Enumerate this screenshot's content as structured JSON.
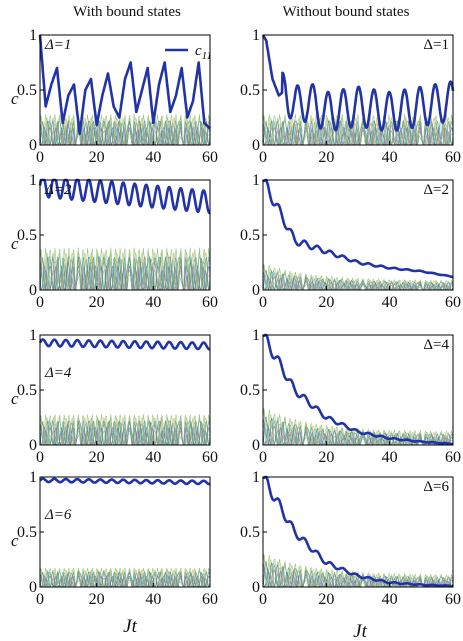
{
  "figure": {
    "left_title": "With bound states",
    "right_title": "Without bound states",
    "y_label": "c",
    "x_label": "Jt",
    "legend_label": "c",
    "legend_sub": "11"
  },
  "chart_data": [
    {
      "type": "line",
      "column": "With bound states",
      "delta_label": "Δ=1",
      "delta_italic": true,
      "main": "bound1",
      "xlim": [
        0,
        60
      ],
      "ylim": [
        0,
        1
      ],
      "xticks": [
        "0",
        "20",
        "40",
        "60"
      ],
      "yticks": [
        "0",
        "0.5",
        "1"
      ],
      "ylabel": "c",
      "xlabel": "",
      "legend": [
        {
          "name": "c11",
          "color": "#2233a8"
        }
      ],
      "series": [
        {
          "name": "c11",
          "color": "#2233a8",
          "x": [
            0,
            2,
            4,
            6,
            8,
            10,
            12,
            14,
            16,
            18,
            20,
            22,
            24,
            26,
            28,
            30,
            32,
            34,
            36,
            38,
            40,
            42,
            44,
            46,
            48,
            50,
            52,
            54,
            56,
            58,
            60
          ],
          "y": [
            1.0,
            0.35,
            0.55,
            0.7,
            0.2,
            0.45,
            0.55,
            0.1,
            0.5,
            0.6,
            0.18,
            0.45,
            0.65,
            0.35,
            0.25,
            0.6,
            0.75,
            0.3,
            0.5,
            0.7,
            0.2,
            0.55,
            0.75,
            0.3,
            0.45,
            0.7,
            0.25,
            0.4,
            0.75,
            0.2,
            0.15
          ]
        },
        {
          "name": "other modes",
          "color": "mixed",
          "y_range": [
            0,
            0.4
          ]
        }
      ]
    },
    {
      "type": "line",
      "column": "Without bound states",
      "delta_label": "Δ=1",
      "delta_italic": false,
      "main": "free",
      "xlim": [
        0,
        60
      ],
      "ylim": [
        0,
        1
      ],
      "xticks": [
        "0",
        "20",
        "40",
        "60"
      ],
      "yticks": [
        "0",
        "0.5",
        "1"
      ],
      "ylabel": "",
      "xlabel": "",
      "series": [
        {
          "name": "c11",
          "color": "#2233a8",
          "x": [
            0,
            1,
            3,
            5,
            7,
            10,
            14,
            20,
            30,
            40,
            50,
            60
          ],
          "y": [
            1.0,
            0.95,
            0.6,
            0.45,
            0.5,
            0.35,
            0.4,
            0.3,
            0.35,
            0.3,
            0.35,
            0.4
          ]
        },
        {
          "name": "other modes",
          "color": "mixed",
          "y_range": [
            0,
            0.4
          ]
        }
      ]
    },
    {
      "type": "line",
      "column": "With bound states",
      "delta_label": "Δ=2",
      "delta_italic": true,
      "main": "bound",
      "xlim": [
        0,
        60
      ],
      "ylim": [
        0,
        1
      ],
      "xticks": [
        "0",
        "20",
        "40",
        "60"
      ],
      "yticks": [
        "0",
        "0.5",
        "1"
      ],
      "ylabel": "c",
      "xlabel": "",
      "series": [
        {
          "name": "c11",
          "color": "#2233a8",
          "mean": 0.82,
          "amplitude": 0.1,
          "x": [
            0,
            60
          ],
          "y": [
            0.95,
            0.8
          ]
        },
        {
          "name": "other modes",
          "color": "mixed",
          "y_range": [
            0,
            0.55
          ]
        }
      ]
    },
    {
      "type": "line",
      "column": "Without bound states",
      "delta_label": "Δ=2",
      "delta_italic": false,
      "main": "decay",
      "xlim": [
        0,
        60
      ],
      "ylim": [
        0,
        1
      ],
      "xticks": [
        "0",
        "20",
        "40",
        "60"
      ],
      "yticks": [
        "0",
        "0.5",
        "1"
      ],
      "ylabel": "",
      "xlabel": "",
      "series": [
        {
          "name": "c11",
          "color": "#2233a8",
          "x": [
            0,
            10,
            20,
            30,
            40,
            50,
            60
          ],
          "y": [
            1.0,
            0.45,
            0.35,
            0.25,
            0.2,
            0.17,
            0.12
          ]
        },
        {
          "name": "other modes",
          "color": "mixed",
          "y_range": [
            0,
            0.35
          ]
        }
      ]
    },
    {
      "type": "line",
      "column": "With bound states",
      "delta_label": "Δ=4",
      "delta_italic": true,
      "main": "bound",
      "xlim": [
        0,
        60
      ],
      "ylim": [
        0,
        1
      ],
      "xticks": [
        "0",
        "20",
        "40",
        "60"
      ],
      "yticks": [
        "0",
        "0.5",
        "1"
      ],
      "ylabel": "c",
      "xlabel": "",
      "series": [
        {
          "name": "c11",
          "color": "#2233a8",
          "mean": 0.91,
          "amplitude": 0.03,
          "x": [
            0,
            60
          ],
          "y": [
            0.93,
            0.9
          ]
        },
        {
          "name": "other modes",
          "color": "mixed",
          "y_range": [
            0,
            0.4
          ]
        }
      ]
    },
    {
      "type": "line",
      "column": "Without bound states",
      "delta_label": "Δ=4",
      "delta_italic": false,
      "main": "decay",
      "xlim": [
        0,
        60
      ],
      "ylim": [
        0,
        1
      ],
      "xticks": [
        "0",
        "20",
        "40",
        "60"
      ],
      "yticks": [
        "0",
        "0.5",
        "1"
      ],
      "ylabel": "",
      "xlabel": "",
      "series": [
        {
          "name": "c11",
          "color": "#2233a8",
          "x": [
            0,
            10,
            20,
            30,
            40,
            50,
            60
          ],
          "y": [
            1.0,
            0.5,
            0.25,
            0.12,
            0.06,
            0.03,
            0.01
          ]
        },
        {
          "name": "other modes",
          "color": "mixed",
          "y_range": [
            0,
            0.5
          ]
        }
      ]
    },
    {
      "type": "line",
      "column": "With bound states",
      "delta_label": "Δ=6",
      "delta_italic": true,
      "main": "bound",
      "xlim": [
        0,
        60
      ],
      "ylim": [
        0,
        1
      ],
      "xticks": [
        "0",
        "20",
        "40",
        "60"
      ],
      "yticks": [
        "0",
        "0.5",
        "1"
      ],
      "ylabel": "c",
      "xlabel": "Jt",
      "series": [
        {
          "name": "c11",
          "color": "#2233a8",
          "mean": 0.96,
          "amplitude": 0.015,
          "x": [
            0,
            60
          ],
          "y": [
            0.97,
            0.95
          ]
        },
        {
          "name": "other modes",
          "color": "mixed",
          "y_range": [
            0,
            0.25
          ]
        }
      ]
    },
    {
      "type": "line",
      "column": "Without bound states",
      "delta_label": "Δ=6",
      "delta_italic": false,
      "main": "decay",
      "xlim": [
        0,
        60
      ],
      "ylim": [
        0,
        1
      ],
      "xticks": [
        "0",
        "20",
        "40",
        "60"
      ],
      "yticks": [
        "0",
        "0.5",
        "1"
      ],
      "ylabel": "",
      "xlabel": "Jt",
      "series": [
        {
          "name": "c11",
          "color": "#2233a8",
          "x": [
            0,
            10,
            20,
            30,
            40,
            50,
            60
          ],
          "y": [
            1.0,
            0.5,
            0.22,
            0.1,
            0.04,
            0.02,
            0.01
          ]
        },
        {
          "name": "other modes",
          "color": "mixed",
          "y_range": [
            0,
            0.45
          ]
        }
      ]
    }
  ],
  "thin_line_colors": [
    "#7cbf6e",
    "#e07a7a",
    "#4a8fa8",
    "#b86bb8",
    "#9a9a9a",
    "#d8a44a",
    "#5a6bd0",
    "#2f8f8f"
  ]
}
